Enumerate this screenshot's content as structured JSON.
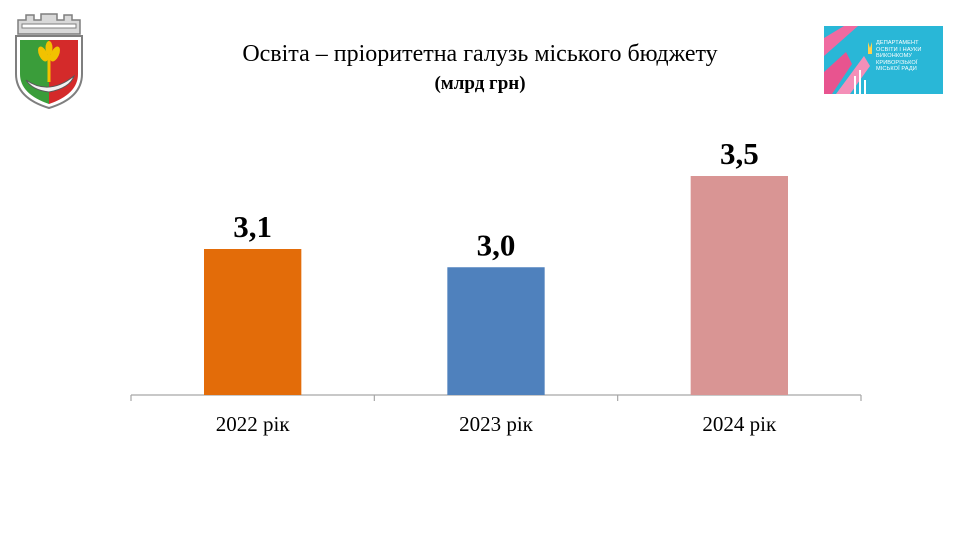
{
  "header": {
    "title": "Освіта – пріоритетна галузь міського бюджету",
    "subtitle": "(млрд грн)",
    "dept_logo_lines": [
      "ДЕПАРТАМЕНТ",
      "ОСВІТИ І НАУКИ",
      "ВИКОНКОМУ",
      "КРИВОРІЗЬКОЇ",
      "МІСЬКОЇ РАДИ"
    ],
    "dept_logo_color": "#29b7d7",
    "coat_of_arms_icon": "city-coat-of-arms-icon"
  },
  "chart_data": {
    "type": "bar",
    "title": "Освіта – пріоритетна галузь міського бюджету",
    "subtitle": "(млрд грн)",
    "categories": [
      "2022 рік",
      "2023 рік",
      "2024 рік"
    ],
    "values": [
      3.1,
      3.0,
      3.5
    ],
    "value_labels": [
      "3,1",
      "3,0",
      "3,5"
    ],
    "colors": [
      "#e36c09",
      "#4f81bd",
      "#d99594"
    ],
    "xlabel": "",
    "ylabel": "",
    "ylim": [
      2.3,
      3.5
    ],
    "grid": false,
    "legend": "none"
  }
}
